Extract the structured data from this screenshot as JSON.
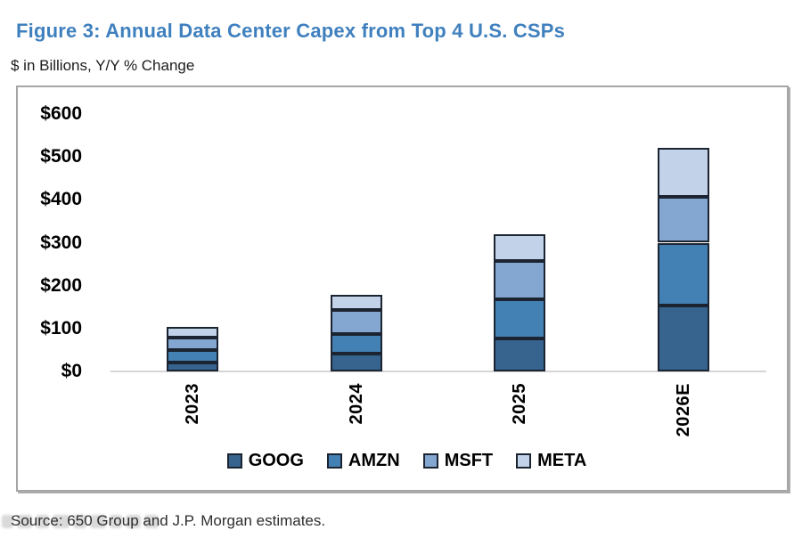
{
  "figure": {
    "title": "Figure 3: Annual Data Center Capex from Top 4 U.S. CSPs",
    "subtitle": "$ in Billions, Y/Y % Change",
    "source": "Source: 650 Group and J.P. Morgan estimates.",
    "title_color": "#3f80be"
  },
  "chart_data": {
    "type": "bar",
    "stacked": true,
    "title": "Figure 3: Annual Data Center Capex from Top 4 U.S. CSPs",
    "subtitle": "$ in Billions, Y/Y % Change",
    "xlabel": "",
    "ylabel": "$ in Billions",
    "categories": [
      "2023",
      "2024",
      "2025",
      "2026E"
    ],
    "series": [
      {
        "name": "GOOG",
        "color": "#36648e",
        "values": [
          20,
          42,
          76,
          154
        ]
      },
      {
        "name": "AMZN",
        "color": "#4381b4",
        "values": [
          30,
          46,
          93,
          146
        ]
      },
      {
        "name": "MSFT",
        "color": "#84a7d1",
        "values": [
          28,
          56,
          89,
          107
        ]
      },
      {
        "name": "META",
        "color": "#c2d2e8",
        "values": [
          26,
          35,
          62,
          115
        ]
      }
    ],
    "totals": [
      104,
      179,
      320,
      522
    ],
    "ylim": [
      0,
      600
    ],
    "yticks": [
      600,
      500,
      400,
      300,
      200,
      100,
      0
    ],
    "ytick_prefix": "$",
    "grid": false,
    "legend_position": "bottom",
    "segment_border_color": "#1b2430",
    "baseline_color": "#d6d6d6"
  }
}
